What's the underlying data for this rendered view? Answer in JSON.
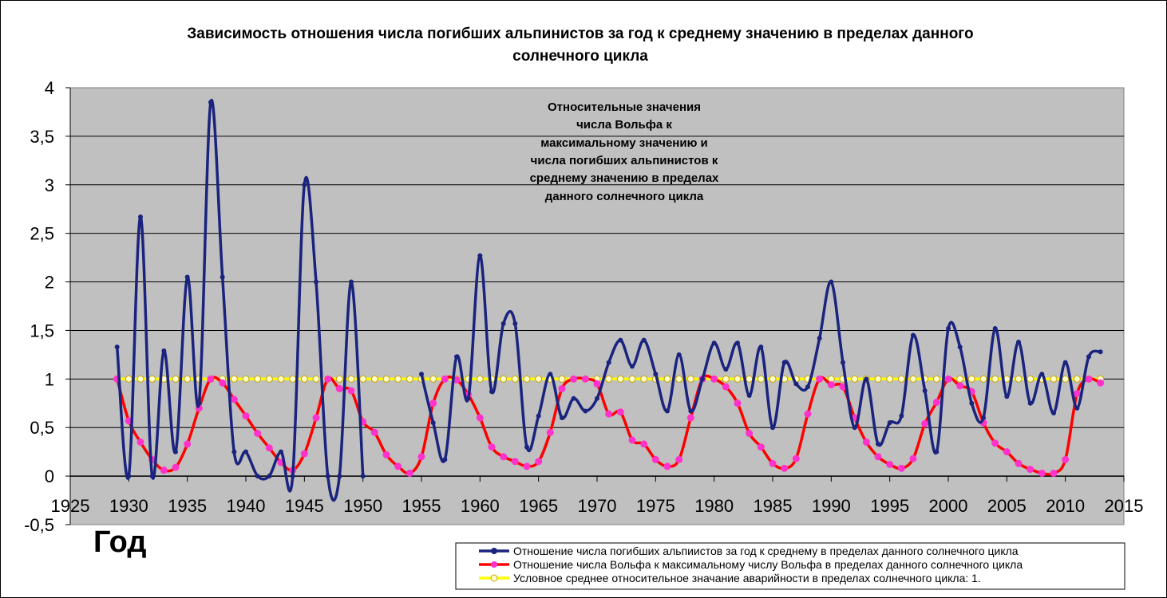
{
  "chart_data": {
    "type": "line",
    "title_lines": [
      "Зависимость отношения числа погибших альпинистов за год к среднему значению в пределах данного",
      "солнечного цикла"
    ],
    "xlabel": "Год",
    "ylabel": "",
    "xlim": [
      1925,
      2015
    ],
    "ylim": [
      -0.5,
      4
    ],
    "x_ticks": [
      "1925",
      "1930",
      "1935",
      "1940",
      "1945",
      "1950",
      "1955",
      "1960",
      "1965",
      "1970",
      "1975",
      "1980",
      "1985",
      "1990",
      "1995",
      "2000",
      "2005",
      "2010",
      "2015"
    ],
    "y_ticks": [
      "-0,5",
      "0",
      "0,5",
      "1",
      "1,5",
      "2",
      "2,5",
      "3",
      "3,5",
      "4"
    ],
    "grid": "horizontal",
    "annotation_lines": [
      "Относительные значения",
      "числа Вольфа к",
      "максимальному значению и",
      "числа погибших альпинистов к",
      "среднему значению в пределах",
      "данного солнечного цикла"
    ],
    "legend_placement": "bottom-right",
    "series": [
      {
        "name": "Отношение числа погибших альпиистов за год к среднему в пределах данного солнечного цикла",
        "color": "#1a237e",
        "x": [
          1929,
          1930,
          1931,
          1932,
          1933,
          1934,
          1935,
          1936,
          1937,
          1938,
          1939,
          1940,
          1941,
          1942,
          1943,
          1944,
          1945,
          1946,
          1947,
          1948,
          1949,
          1950,
          1955,
          1956,
          1957,
          1958,
          1959,
          1960,
          1961,
          1962,
          1963,
          1964,
          1965,
          1966,
          1967,
          1968,
          1969,
          1970,
          1971,
          1972,
          1973,
          1974,
          1975,
          1976,
          1977,
          1978,
          1979,
          1980,
          1981,
          1982,
          1983,
          1984,
          1985,
          1986,
          1987,
          1988,
          1989,
          1990,
          1991,
          1992,
          1993,
          1994,
          1995,
          1996,
          1997,
          1998,
          1999,
          2000,
          2001,
          2002,
          2003,
          2004,
          2005,
          2006,
          2007,
          2008,
          2009,
          2010,
          2011,
          2012,
          2013
        ],
        "y": [
          1.33,
          0,
          2.67,
          0,
          1.29,
          0.25,
          2.05,
          0.75,
          3.85,
          2.05,
          0.25,
          0.25,
          0,
          0,
          0.25,
          0,
          3.0,
          2.0,
          0,
          0,
          2.0,
          0,
          1.05,
          0.55,
          0.17,
          1.23,
          0.8,
          2.27,
          0.87,
          1.57,
          1.57,
          0.3,
          0.62,
          1.05,
          0.6,
          0.8,
          0.67,
          0.8,
          1.17,
          1.4,
          1.13,
          1.4,
          1.05,
          0.67,
          1.25,
          0.67,
          1.0,
          1.37,
          1.1,
          1.37,
          0.83,
          1.33,
          0.5,
          1.17,
          0.95,
          0.92,
          1.42,
          2.0,
          1.17,
          0.5,
          1.0,
          0.33,
          0.55,
          0.62,
          1.45,
          0.88,
          0.25,
          1.52,
          1.33,
          0.75,
          0.6,
          1.52,
          0.82,
          1.38,
          0.75,
          1.05,
          0.65,
          1.17,
          0.7,
          1.23,
          1.28
        ]
      },
      {
        "name": "Отношение числа Вольфа к максимальному числу Вольфа в пределах данного солнечного цикла",
        "color": "#ff0000",
        "marker_color": "#ff33cc",
        "x": [
          1929,
          1930,
          1931,
          1932,
          1933,
          1934,
          1935,
          1936,
          1937,
          1938,
          1939,
          1940,
          1941,
          1942,
          1943,
          1944,
          1945,
          1946,
          1947,
          1948,
          1949,
          1950,
          1951,
          1952,
          1953,
          1954,
          1955,
          1956,
          1957,
          1958,
          1959,
          1960,
          1961,
          1962,
          1963,
          1964,
          1965,
          1966,
          1967,
          1968,
          1969,
          1970,
          1971,
          1972,
          1973,
          1974,
          1975,
          1976,
          1977,
          1978,
          1979,
          1980,
          1981,
          1982,
          1983,
          1984,
          1985,
          1986,
          1987,
          1988,
          1989,
          1990,
          1991,
          1992,
          1993,
          1994,
          1995,
          1996,
          1997,
          1998,
          1999,
          2000,
          2001,
          2002,
          2003,
          2004,
          2005,
          2006,
          2007,
          2008,
          2009,
          2010,
          2011,
          2012,
          2013
        ],
        "y": [
          1.0,
          0.57,
          0.35,
          0.17,
          0.06,
          0.09,
          0.33,
          0.7,
          1.0,
          0.96,
          0.79,
          0.62,
          0.44,
          0.29,
          0.14,
          0.06,
          0.23,
          0.6,
          1.0,
          0.9,
          0.88,
          0.56,
          0.45,
          0.22,
          0.1,
          0.03,
          0.2,
          0.75,
          1.0,
          0.99,
          0.84,
          0.6,
          0.3,
          0.2,
          0.15,
          0.1,
          0.15,
          0.45,
          0.9,
          1.0,
          1.0,
          0.95,
          0.64,
          0.66,
          0.37,
          0.33,
          0.17,
          0.1,
          0.17,
          0.6,
          1.0,
          1.0,
          0.92,
          0.75,
          0.44,
          0.3,
          0.13,
          0.08,
          0.18,
          0.64,
          1.0,
          0.94,
          0.92,
          0.6,
          0.35,
          0.2,
          0.12,
          0.08,
          0.18,
          0.54,
          0.76,
          1.0,
          0.93,
          0.87,
          0.55,
          0.34,
          0.25,
          0.13,
          0.07,
          0.03,
          0.03,
          0.17,
          0.85,
          1.0,
          0.96
        ]
      },
      {
        "name": "Условное среднее относительное значание аварийности в пределах солнечного цикла: 1.",
        "color": "#ffff00",
        "x": [
          1929,
          1930,
          1931,
          1932,
          1933,
          1934,
          1935,
          1936,
          1937,
          1938,
          1939,
          1940,
          1941,
          1942,
          1943,
          1944,
          1945,
          1946,
          1947,
          1948,
          1949,
          1950,
          1951,
          1952,
          1953,
          1954,
          1955,
          1956,
          1957,
          1958,
          1959,
          1960,
          1961,
          1962,
          1963,
          1964,
          1965,
          1966,
          1967,
          1968,
          1969,
          1970,
          1971,
          1972,
          1973,
          1974,
          1975,
          1976,
          1977,
          1978,
          1979,
          1980,
          1981,
          1982,
          1983,
          1984,
          1985,
          1986,
          1987,
          1988,
          1989,
          1990,
          1991,
          1992,
          1993,
          1994,
          1995,
          1996,
          1997,
          1998,
          1999,
          2000,
          2001,
          2002,
          2003,
          2004,
          2005,
          2006,
          2007,
          2008,
          2009,
          2010,
          2011,
          2012,
          2013
        ],
        "y": [
          1,
          1,
          1,
          1,
          1,
          1,
          1,
          1,
          1,
          1,
          1,
          1,
          1,
          1,
          1,
          1,
          1,
          1,
          1,
          1,
          1,
          1,
          1,
          1,
          1,
          1,
          1,
          1,
          1,
          1,
          1,
          1,
          1,
          1,
          1,
          1,
          1,
          1,
          1,
          1,
          1,
          1,
          1,
          1,
          1,
          1,
          1,
          1,
          1,
          1,
          1,
          1,
          1,
          1,
          1,
          1,
          1,
          1,
          1,
          1,
          1,
          1,
          1,
          1,
          1,
          1,
          1,
          1,
          1,
          1,
          1,
          1,
          1,
          1,
          1,
          1,
          1,
          1,
          1,
          1,
          1,
          1,
          1,
          1,
          1
        ]
      }
    ]
  }
}
